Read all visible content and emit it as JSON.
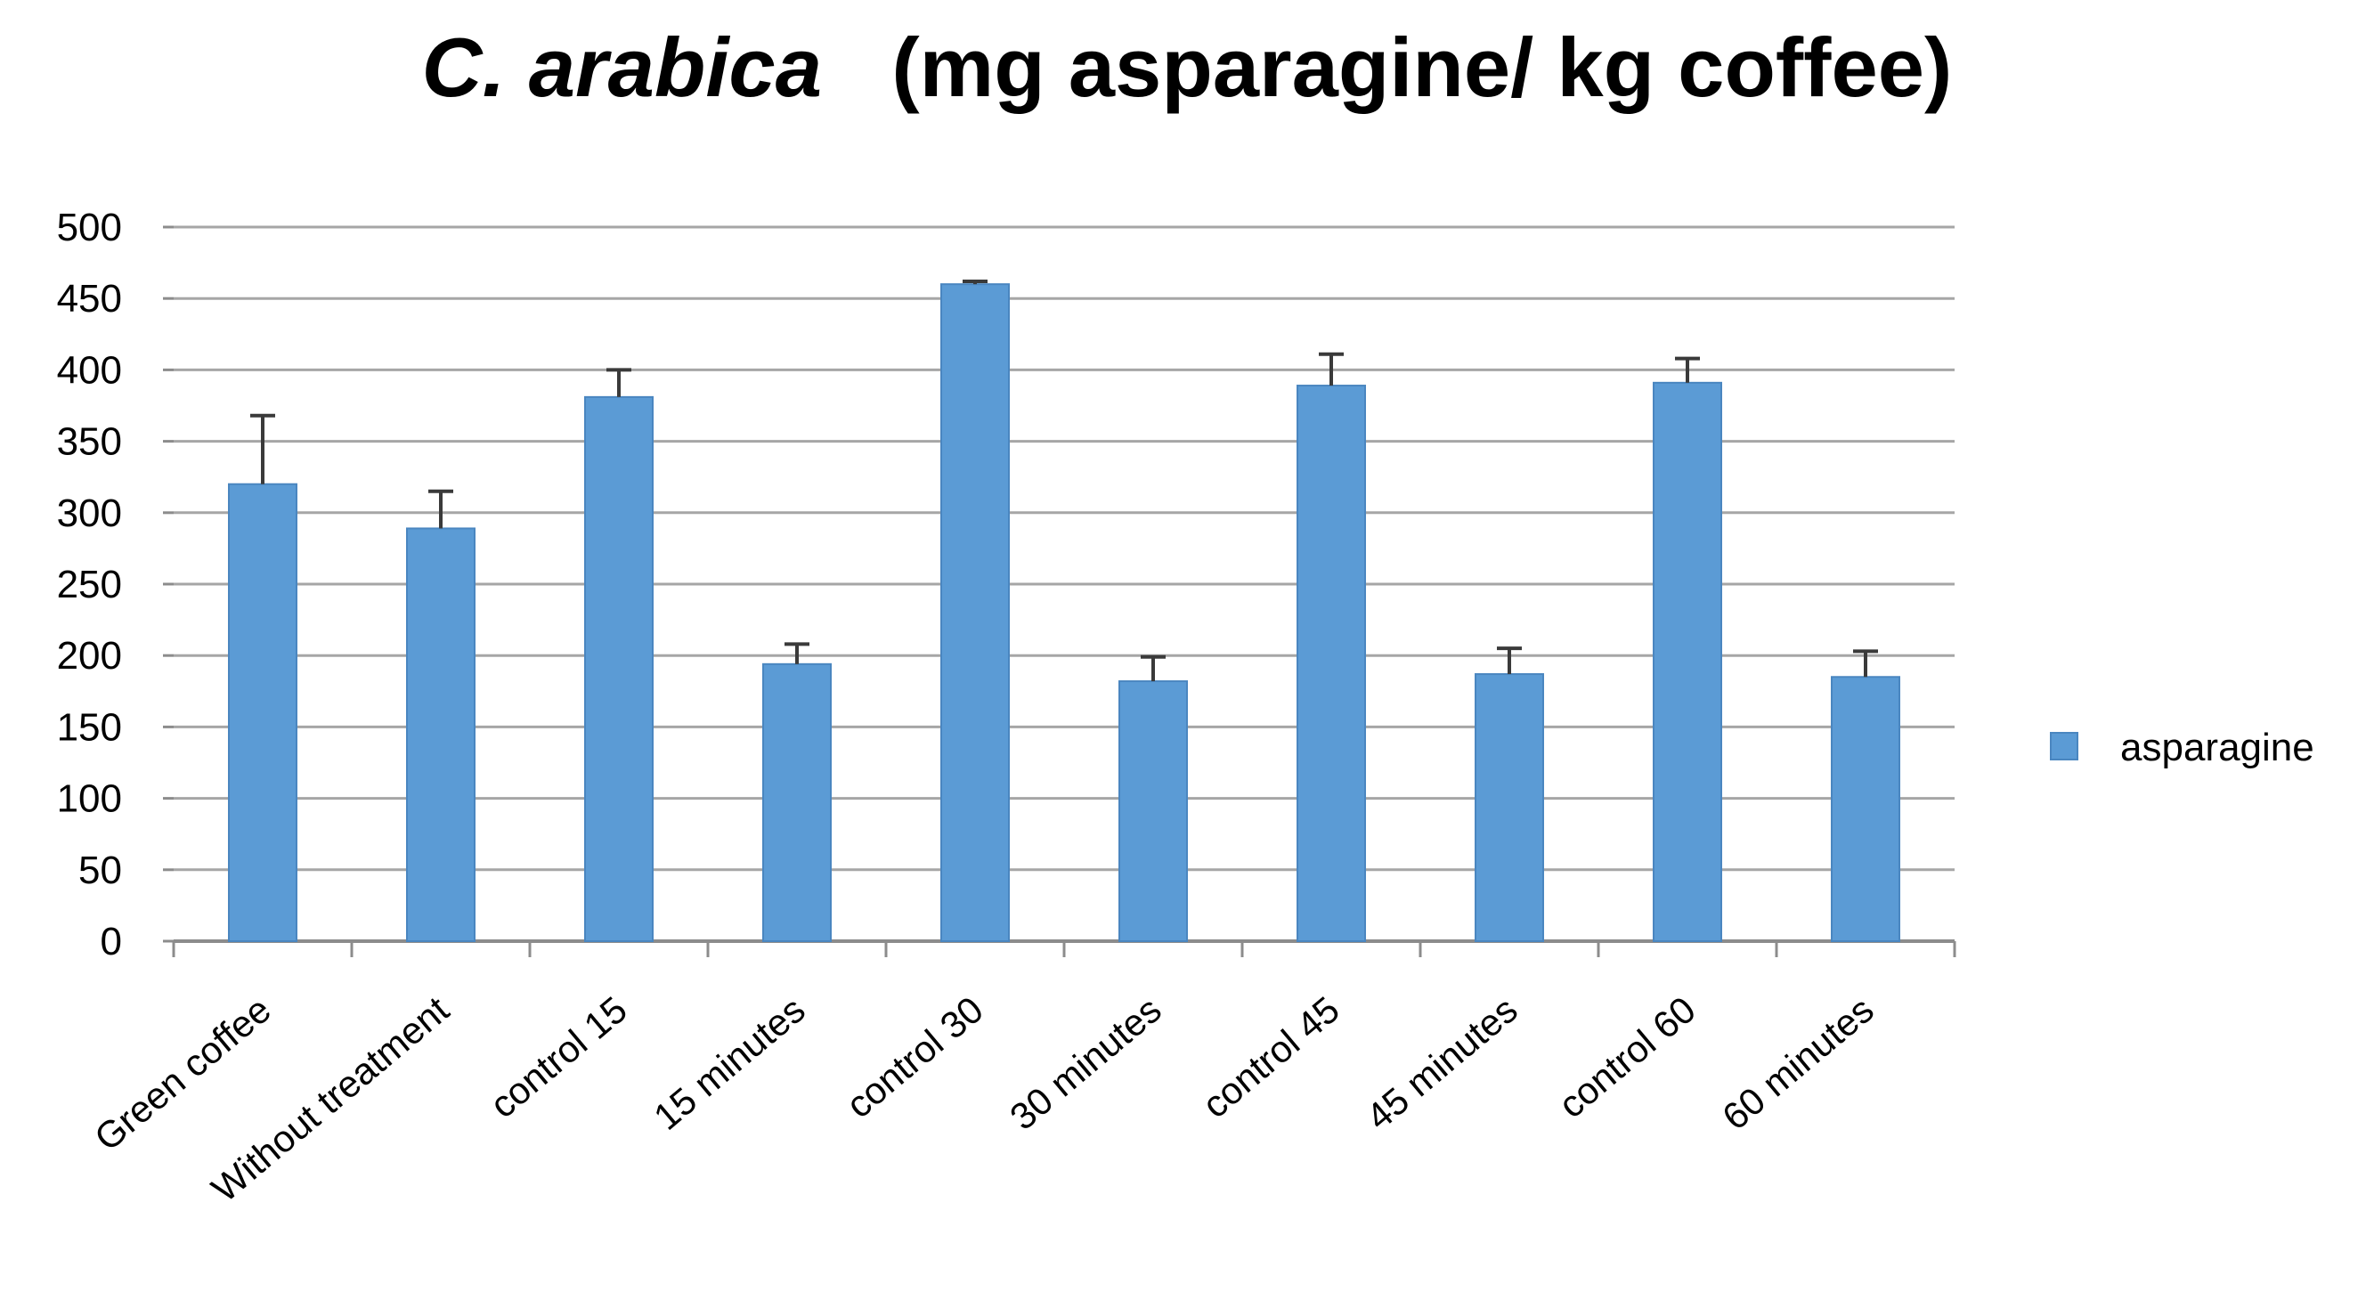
{
  "chart_data": {
    "type": "bar",
    "title_species": "C. arabica",
    "title_units": "(mg asparagine/ kg coffee)",
    "xlabel": "",
    "ylabel": "",
    "ylim": [
      0,
      500
    ],
    "yticks": [
      0,
      50,
      100,
      150,
      200,
      250,
      300,
      350,
      400,
      450,
      500
    ],
    "grid": true,
    "legend_position": "right",
    "categories": [
      "Green coffee",
      "Without treatment",
      "control 15",
      "15 minutes",
      "control 30",
      "30 minutes",
      "control 45",
      "45 minutes",
      "control 60",
      "60 minutes"
    ],
    "series": [
      {
        "name": "asparagine",
        "color": "#5b9bd5",
        "values": [
          320,
          289,
          381,
          194,
          460,
          182,
          389,
          187,
          391,
          185
        ],
        "errors": [
          48,
          26,
          19,
          14,
          2,
          17,
          22,
          18,
          17,
          18
        ]
      }
    ]
  }
}
